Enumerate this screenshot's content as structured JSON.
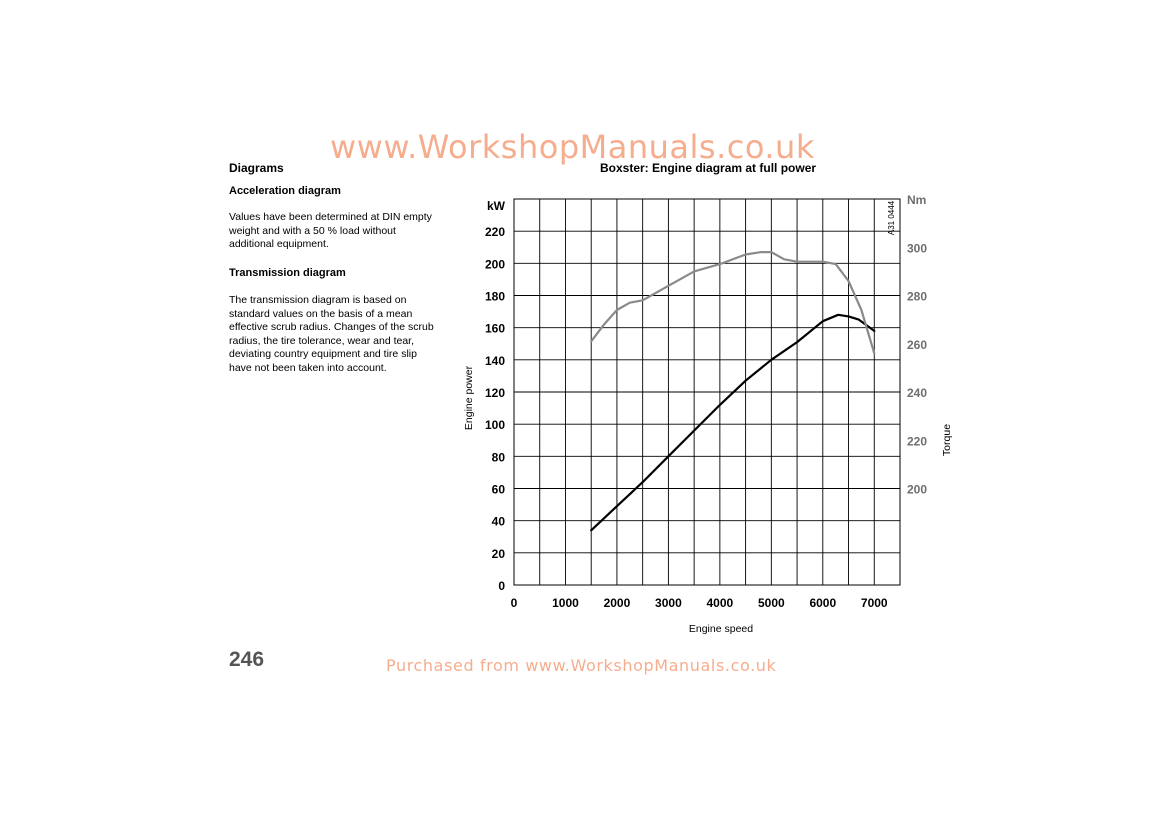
{
  "watermark": {
    "top": "www.WorkshopManuals.co.uk",
    "bottom": "Purchased from www.WorkshopManuals.co.uk"
  },
  "left_column": {
    "section_title": "Diagrams",
    "acceleration": {
      "heading": "Acceleration diagram",
      "lines": [
        "Values have been determined at DIN empty",
        "weight and with a 50 % load without",
        "additional equipment."
      ]
    },
    "transmission": {
      "heading": "Transmission diagram",
      "lines": [
        "The transmission diagram is based on",
        "standard values on the basis of a mean",
        "effective scrub radius. Changes of the scrub",
        "radius, the tire tolerance, wear and tear,",
        "deviating country equipment and tire slip",
        "have not been taken into account."
      ]
    }
  },
  "page_number": "246",
  "figure_code": "A31 0444",
  "colors": {
    "power_line": "#000000",
    "torque_line": "#8a8a8a",
    "torque_labels": "#6e6e6e",
    "watermark": "#f4a582"
  },
  "chart_data": {
    "type": "line",
    "title": "Boxster: Engine diagram at full power",
    "xlabel": "Engine speed",
    "ylabel": "Engine power",
    "y2label": "Torque",
    "y_unit": "kW",
    "y2_unit": "Nm",
    "xlim": [
      0,
      7500
    ],
    "ylim": [
      0,
      240
    ],
    "y2lim": [
      200,
      320
    ],
    "x_ticks": [
      0,
      1000,
      2000,
      3000,
      4000,
      5000,
      6000,
      7000
    ],
    "y_ticks": [
      0,
      20,
      40,
      60,
      80,
      100,
      120,
      140,
      160,
      180,
      200,
      220
    ],
    "y2_ticks": [
      200,
      220,
      240,
      260,
      280,
      300
    ],
    "grid": true,
    "series": [
      {
        "axis": "left",
        "x": [
          1500,
          2000,
          2500,
          3000,
          3500,
          4000,
          4500,
          5000,
          5500,
          6000,
          6300,
          6500,
          6700,
          7000
        ],
        "values": [
          34,
          49,
          64,
          80,
          96,
          112,
          127,
          140,
          151,
          164,
          168,
          167,
          165,
          158
        ]
      },
      {
        "axis": "right",
        "x": [
          1500,
          1750,
          2000,
          2250,
          2500,
          2750,
          3000,
          3500,
          4000,
          4500,
          4800,
          5000,
          5250,
          5500,
          5750,
          6000,
          6250,
          6500,
          6750,
          7000
        ],
        "values": [
          261,
          268,
          274,
          277,
          278,
          281,
          284,
          290,
          293,
          297,
          298,
          298,
          295,
          294,
          294,
          294,
          293,
          286,
          274,
          256
        ]
      }
    ]
  }
}
